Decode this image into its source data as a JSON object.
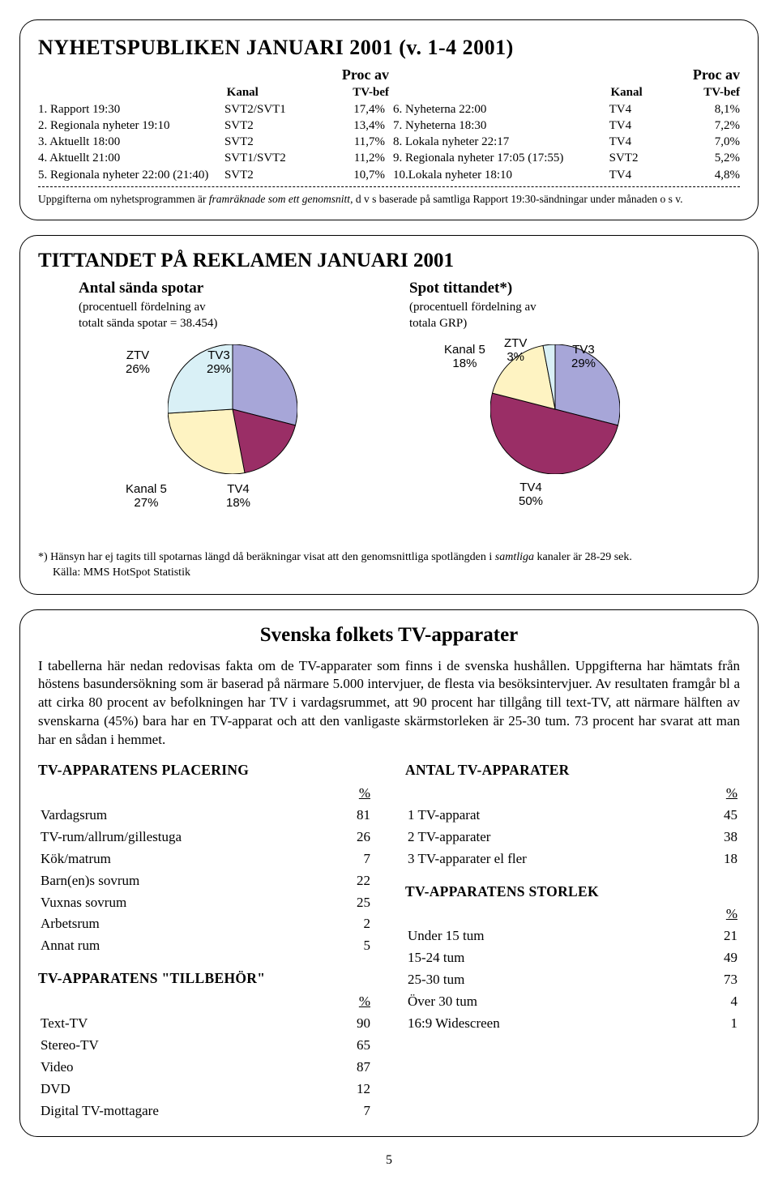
{
  "panel1": {
    "title": "NYHETSPUBLIKEN JANUARI 2001 (v. 1-4 2001)",
    "proc_av": "Proc av",
    "kanal": "Kanal",
    "tvbef": "TV-bef",
    "left": [
      {
        "name": "1. Rapport 19:30",
        "kanal": "SVT2/SVT1",
        "pct": "17,4%"
      },
      {
        "name": "2. Regionala nyheter 19:10",
        "kanal": "SVT2",
        "pct": "13,4%"
      },
      {
        "name": "3. Aktuellt 18:00",
        "kanal": "SVT2",
        "pct": "11,7%"
      },
      {
        "name": "4. Aktuellt 21:00",
        "kanal": "SVT1/SVT2",
        "pct": "11,2%"
      },
      {
        "name": "5. Regionala nyheter 22:00 (21:40)",
        "kanal": "SVT2",
        "pct": "10,7%"
      }
    ],
    "right": [
      {
        "name": "6. Nyheterna 22:00",
        "kanal": "TV4",
        "pct": "8,1%"
      },
      {
        "name": "7. Nyheterna 18:30",
        "kanal": "TV4",
        "pct": "7,2%"
      },
      {
        "name": "8. Lokala nyheter 22:17",
        "kanal": "TV4",
        "pct": "7,0%"
      },
      {
        "name": "9. Regionala nyheter 17:05 (17:55)",
        "kanal": "SVT2",
        "pct": "5,2%"
      },
      {
        "name": "10.Lokala nyheter 18:10",
        "kanal": "TV4",
        "pct": "4,8%"
      }
    ],
    "foot1": "Uppgifterna om nyhetsprogrammen är ",
    "foot_i": "framräknade som ett genomsnitt",
    "foot2": ", d v s baserade på samtliga Rapport 19:30-sändningar under månaden o s v."
  },
  "panel2": {
    "title": "TITTANDET PÅ REKLAMEN JANUARI 2001",
    "left_head": "Antal sända spotar",
    "left_par1": "(procentuell fördelning av",
    "left_par2": "totalt sända spotar = 38.454)",
    "right_head": "Spot tittandet*)",
    "right_par1": "(procentuell fördelning av",
    "right_par2": "totala GRP)",
    "pie1": {
      "slices": [
        {
          "label": "TV3",
          "pct": 29,
          "color": "#a7a6d8"
        },
        {
          "label": "TV4",
          "pct": 18,
          "color": "#9a2e66"
        },
        {
          "label": "Kanal 5",
          "pct": 27,
          "color": "#fef3c2"
        },
        {
          "label": "ZTV",
          "pct": 26,
          "color": "#d9f0f6"
        }
      ],
      "labels": {
        "ztv": "ZTV\n26%",
        "tv3": "TV3\n29%",
        "kanal5": "Kanal 5\n27%",
        "tv4": "TV4\n18%"
      }
    },
    "pie2": {
      "slices": [
        {
          "label": "TV3",
          "pct": 29,
          "color": "#a7a6d8"
        },
        {
          "label": "TV4",
          "pct": 50,
          "color": "#9a2e66"
        },
        {
          "label": "Kanal 5",
          "pct": 18,
          "color": "#fef3c2"
        },
        {
          "label": "ZTV",
          "pct": 3,
          "color": "#d9f0f6"
        }
      ],
      "labels": {
        "kanal5": "Kanal 5\n18%",
        "ztv": "ZTV\n3%",
        "tv3": "TV3\n29%",
        "tv4": "TV4\n50%"
      }
    },
    "foot_star": "*) Hänsyn har ej tagits till spotarnas längd då beräkningar visat att den genomsnittliga spotlängden i ",
    "foot_i": "samtliga",
    "foot_star2": " kanaler är 28-29 sek.",
    "foot_src": "Källa: MMS HotSpot Statistik"
  },
  "panel3": {
    "title": "Svenska folkets TV-apparater",
    "intro": "I tabellerna här nedan redovisas fakta om de TV-apparater som finns i de svenska hushållen. Uppgifterna har hämtats från höstens basundersökning som är baserad på närmare 5.000 intervjuer, de flesta via besöksintervjuer. Av resultaten framgår bl a att cirka 80 procent av befolkningen har TV i vardagsrummet, att 90 procent har tillgång till text-TV, att närmare hälften av svenskarna (45%) bara har en TV-apparat och att den vanligaste skärmstorleken är 25-30 tum. 73 procent har svarat att man har en sådan i hemmet.",
    "pct": "%",
    "placering": {
      "title": "TV-APPARATENS PLACERING",
      "rows": [
        [
          "Vardagsrum",
          "81"
        ],
        [
          "TV-rum/allrum/gillestuga",
          "26"
        ],
        [
          "Kök/matrum",
          "7"
        ],
        [
          "Barn(en)s sovrum",
          "22"
        ],
        [
          "Vuxnas sovrum",
          "25"
        ],
        [
          "Arbetsrum",
          "2"
        ],
        [
          "Annat rum",
          "5"
        ]
      ]
    },
    "tillbehor": {
      "title": "TV-APPARATENS \"TILLBEHÖR\"",
      "rows": [
        [
          "Text-TV",
          "90"
        ],
        [
          "Stereo-TV",
          "65"
        ],
        [
          "Video",
          "87"
        ],
        [
          "DVD",
          "12"
        ],
        [
          "Digital TV-mottagare",
          "7"
        ]
      ]
    },
    "antal": {
      "title": "ANTAL TV-APPARATER",
      "rows": [
        [
          "1 TV-apparat",
          "45"
        ],
        [
          "2 TV-apparater",
          "38"
        ],
        [
          "3 TV-apparater el fler",
          "18"
        ]
      ]
    },
    "storlek": {
      "title": "TV-APPARATENS STORLEK",
      "rows": [
        [
          "Under 15 tum",
          "21"
        ],
        [
          "15-24 tum",
          "49"
        ],
        [
          "25-30 tum",
          "73"
        ],
        [
          "Över 30 tum",
          "4"
        ],
        [
          "16:9 Widescreen",
          "1"
        ]
      ]
    }
  },
  "pagenum": "5"
}
